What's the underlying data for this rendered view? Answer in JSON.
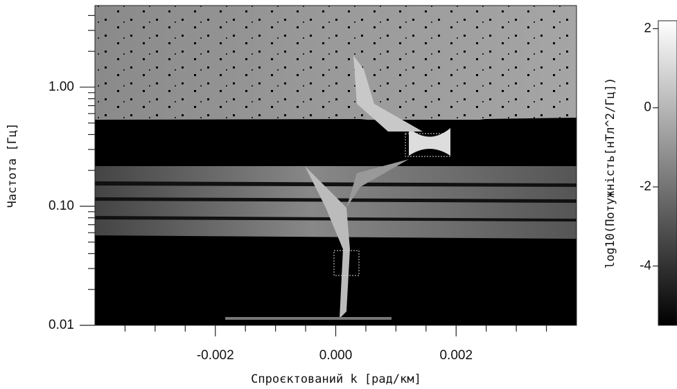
{
  "chart_data": {
    "type": "image",
    "xlabel": "Спроєктований k [рад/км]",
    "ylabel": "Частота [Гц]",
    "xlim": [
      -0.004,
      0.004
    ],
    "xticks": [
      {
        "value": -0.002,
        "label": "-0.002"
      },
      {
        "value": 0,
        "label": "0.000"
      },
      {
        "value": 0.002,
        "label": "0.002"
      }
    ],
    "xminorticks": [
      -0.0035,
      -0.003,
      -0.0025,
      -0.0015,
      -0.001,
      -0.0005,
      0.0005,
      0.001,
      0.0015,
      0.0025,
      0.003,
      0.0035
    ],
    "ylim": [
      0.01,
      4.85
    ],
    "log_y": true,
    "yticks": [
      {
        "value": 0.01,
        "label": "0.01"
      },
      {
        "value": 0.1,
        "label": "0.10"
      },
      {
        "value": 1,
        "label": "1.00"
      }
    ],
    "colorbar_label": "log10(Потужність[нТл^2/Гц])",
    "clim": [
      -5.5,
      2.2
    ],
    "cticks": [
      2,
      0,
      -2,
      -4
    ]
  }
}
